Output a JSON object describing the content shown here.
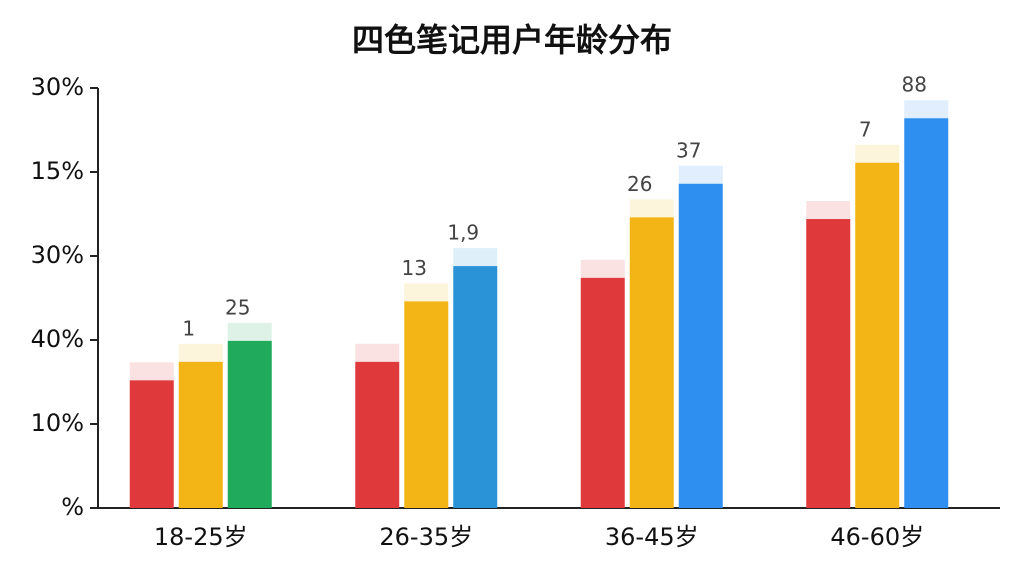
{
  "chart_data": {
    "type": "bar",
    "title": "四色笔记用户年龄分布",
    "categories": [
      "18-25岁",
      "26-35岁",
      "36-45岁",
      "46-60岁"
    ],
    "series": [
      {
        "color": "#e0393c",
        "values": [
          1.52,
          1.74,
          2.74,
          3.44
        ]
      },
      {
        "color": "#f3b515",
        "values": [
          1.74,
          2.46,
          3.46,
          4.11
        ],
        "labels": [
          "1",
          "13",
          "26",
          "7"
        ]
      },
      {
        "colors": [
          "#1faa5c",
          "#2a93d8",
          "#2f8ff0",
          "#2f8ff0"
        ],
        "values": [
          1.99,
          2.88,
          3.86,
          4.64
        ],
        "labels": [
          "25",
          "1,9",
          "37",
          "88"
        ]
      }
    ],
    "ylim": [
      0,
      5
    ],
    "yticks": [
      {
        "value": 0,
        "label": "%"
      },
      {
        "value": 1,
        "label": "10%"
      },
      {
        "value": 2,
        "label": "40%"
      },
      {
        "value": 3,
        "label": "30%"
      },
      {
        "value": 4,
        "label": "15%"
      },
      {
        "value": 5,
        "label": "30%"
      }
    ]
  }
}
